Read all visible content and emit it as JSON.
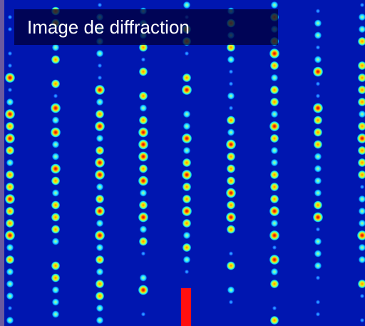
{
  "title": "Image de diffraction",
  "colors": {
    "background": "#0016b0",
    "frame": "#6a5aa0",
    "beam_stop": "#ff1010"
  },
  "diffraction_pattern": {
    "colormap": "jet",
    "beam_stop": true
  }
}
